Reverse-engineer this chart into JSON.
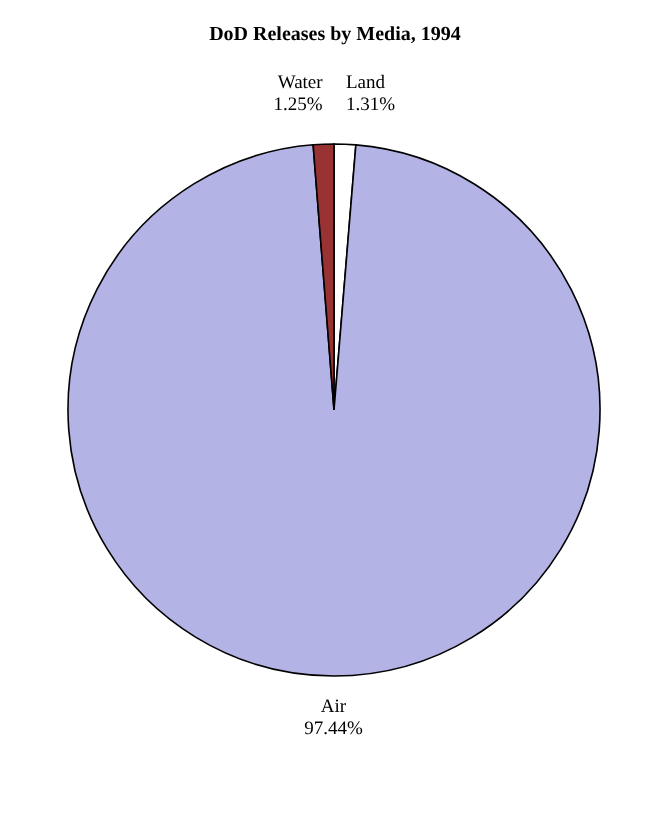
{
  "chart_data": {
    "type": "pie",
    "title": "DoD Releases by Media, 1994",
    "categories": [
      "Land",
      "Air",
      "Water"
    ],
    "values": [
      1.31,
      97.44,
      1.25
    ],
    "colors": [
      "#ffffff",
      "#b3b3e6",
      "#993333"
    ],
    "value_labels": [
      "1.31%",
      "97.44%",
      "1.25%"
    ]
  }
}
